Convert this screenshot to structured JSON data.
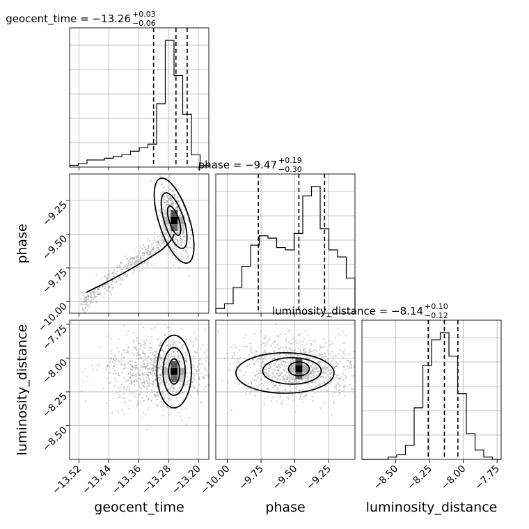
{
  "chart_data": {
    "type": "corner",
    "parameters": [
      "geocent_time",
      "phase",
      "luminosity_distance"
    ],
    "ranges": {
      "geocent_time": [
        -13.545,
        -13.172
      ],
      "phase": [
        -10.085,
        -9.055
      ],
      "luminosity_distance": [
        -8.75,
        -7.72
      ]
    },
    "ticks": {
      "geocent_time": {
        "values": [
          -13.52,
          -13.44,
          -13.36,
          -13.28,
          -13.2
        ],
        "labels": [
          "−13.52",
          "−13.44",
          "−13.36",
          "−13.28",
          "−13.20"
        ]
      },
      "phase": {
        "values": [
          -10.0,
          -9.75,
          -9.5,
          -9.25
        ],
        "labels": [
          "−10.00",
          "−9.75",
          "−9.50",
          "−9.25"
        ]
      },
      "luminosity_distance": {
        "values": [
          -8.5,
          -8.25,
          -8.0,
          -7.75
        ],
        "labels": [
          "−8.50",
          "−8.25",
          "−8.00",
          "−7.75"
        ]
      }
    },
    "titles": [
      {
        "param": "geocent_time",
        "prefix": "geocent_time = −13.26",
        "plus": "+0.03",
        "minus": "−0.06"
      },
      {
        "param": "phase",
        "prefix": "phase = −9.47",
        "plus": "+0.19",
        "minus": "−0.30"
      },
      {
        "param": "luminosity_distance",
        "prefix": "luminosity_distance = −8.14",
        "plus": "+0.10",
        "minus": "−0.12"
      }
    ],
    "quantiles": {
      "geocent_time": [
        -13.32,
        -13.26,
        -13.23
      ],
      "phase": [
        -9.77,
        -9.47,
        -9.28
      ],
      "luminosity_distance": [
        -8.26,
        -8.14,
        -8.04
      ]
    },
    "histograms": {
      "geocent_time": [
        1,
        2,
        4,
        4,
        5,
        6,
        7,
        9,
        11,
        13,
        36,
        72,
        52,
        30,
        7,
        1
      ],
      "phase": [
        2,
        4,
        11,
        20,
        29,
        33,
        32,
        28,
        27,
        34,
        50,
        54,
        36,
        27,
        24,
        15
      ],
      "luminosity_distance": [
        0,
        0,
        0,
        1,
        2,
        6,
        22,
        40,
        51,
        54,
        44,
        28,
        11,
        4,
        1,
        0
      ]
    },
    "density_peaks": {
      "geocent_time_vs_phase": [
        -13.265,
        -9.4
      ],
      "geocent_time_vs_luminosity_distance": [
        -13.265,
        -8.1
      ],
      "phase_vs_luminosity_distance": [
        -9.47,
        -8.08
      ]
    },
    "grid": true,
    "style": {
      "line": "#000000",
      "points": "#9a9a9a",
      "grid": "#b0b0b0"
    }
  }
}
